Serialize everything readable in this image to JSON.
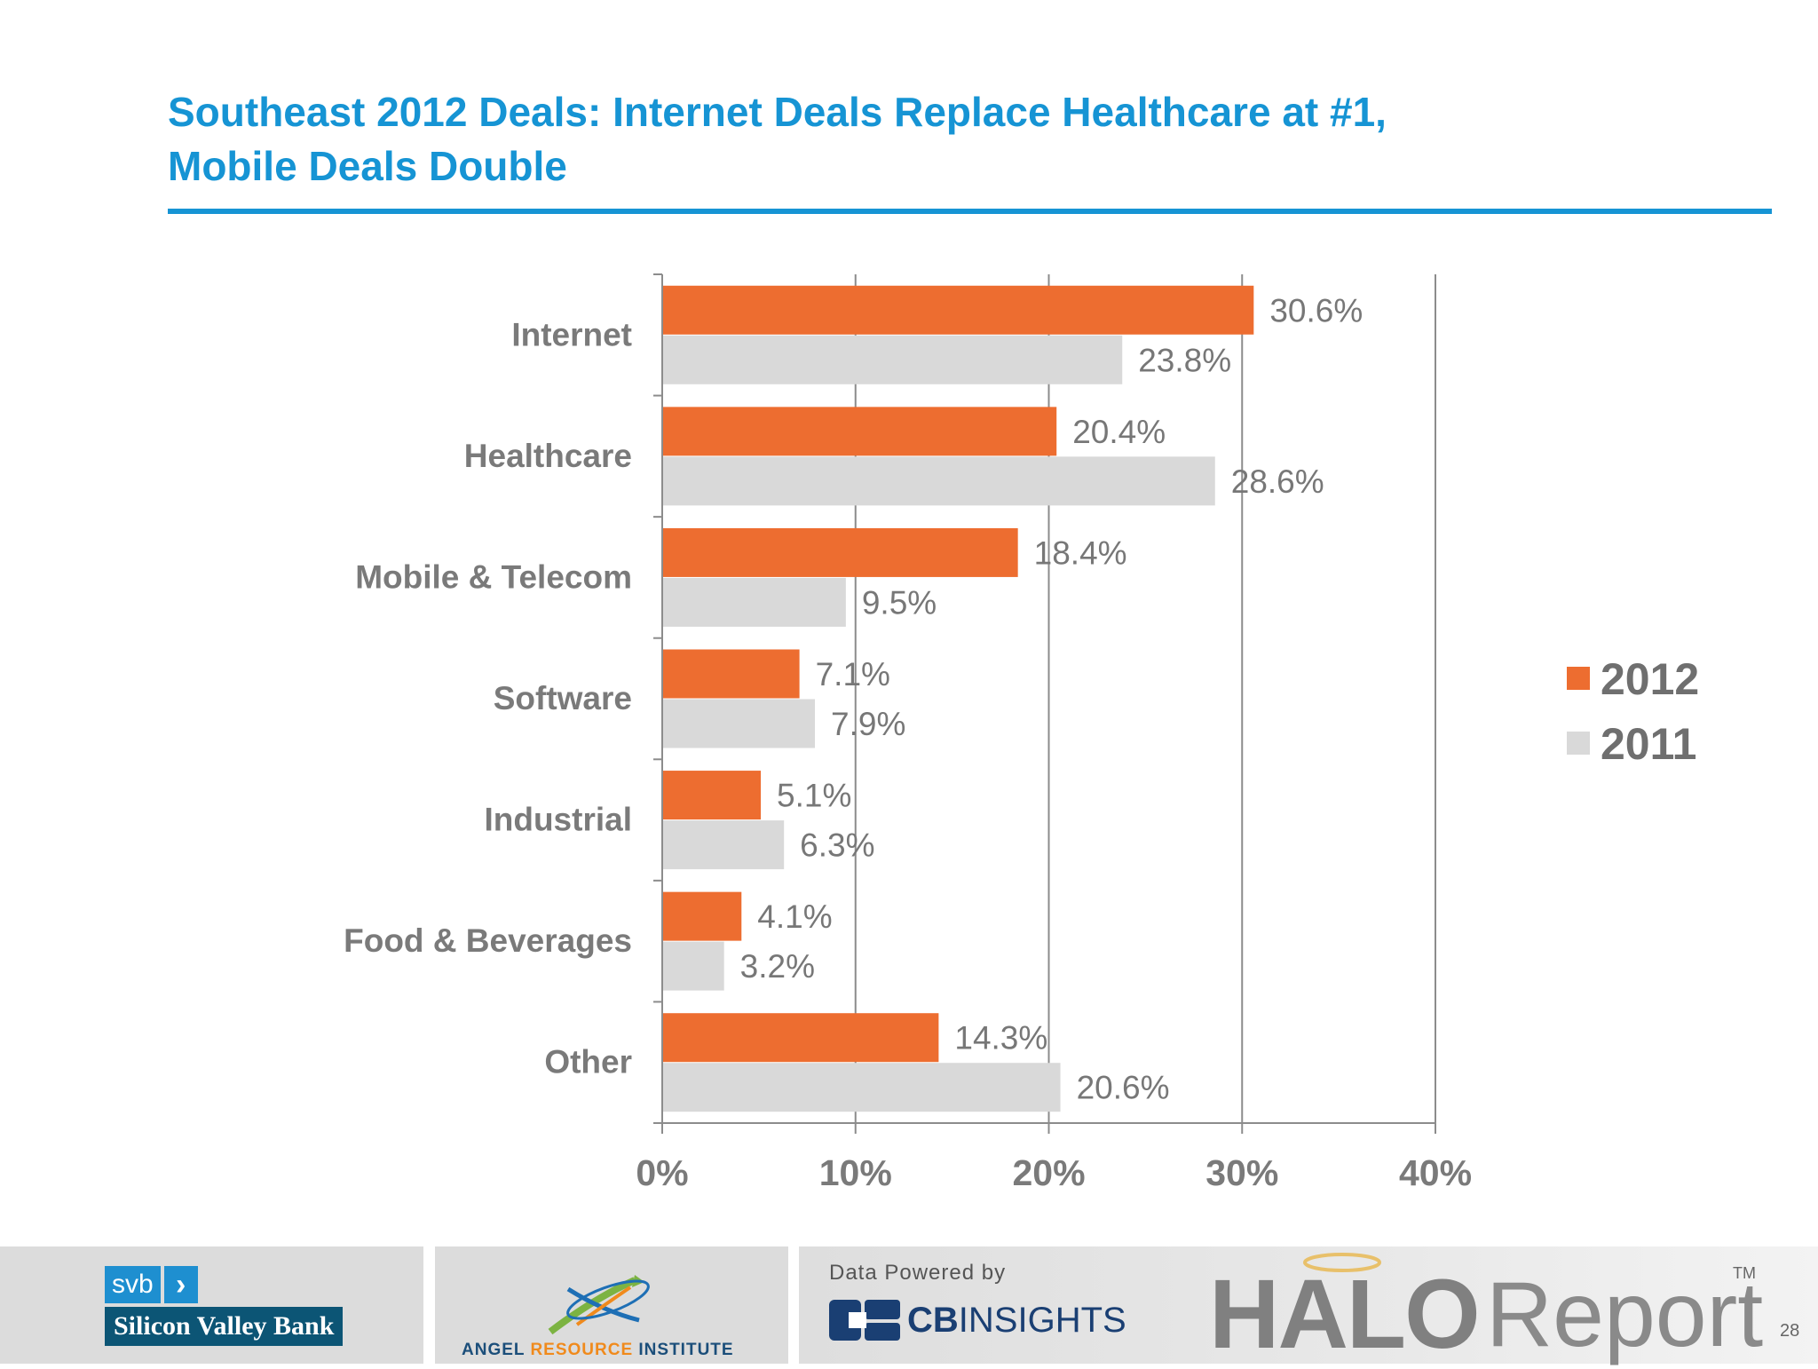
{
  "slide": {
    "title_line1": "Southeast 2012 Deals: Internet Deals Replace Healthcare at #1,",
    "title_line2": "Mobile Deals Double",
    "page_number": "28"
  },
  "chart_data": {
    "type": "bar",
    "orientation": "horizontal",
    "categories": [
      "Internet",
      "Healthcare",
      "Mobile & Telecom",
      "Software",
      "Industrial",
      "Food & Beverages",
      "Other"
    ],
    "series": [
      {
        "name": "2012",
        "values": [
          30.6,
          20.4,
          18.4,
          7.1,
          5.1,
          4.1,
          14.3
        ],
        "labels": [
          "30.6%",
          "20.4%",
          "18.4%",
          "7.1%",
          "5.1%",
          "4.1%",
          "14.3%"
        ],
        "color": "#ed6d30"
      },
      {
        "name": "2011",
        "values": [
          23.8,
          28.6,
          9.5,
          7.9,
          6.3,
          3.2,
          20.6
        ],
        "labels": [
          "23.8%",
          "28.6%",
          "9.5%",
          "7.9%",
          "6.3%",
          "3.2%",
          "20.6%"
        ],
        "color": "#d9d9d9"
      }
    ],
    "xlim": [
      0,
      40
    ],
    "xticks": [
      0,
      10,
      20,
      30,
      40
    ],
    "xtick_labels": [
      "0%",
      "10%",
      "20%",
      "30%",
      "40%"
    ],
    "grid": "vertical",
    "legend_position": "right"
  },
  "footer": {
    "svb": {
      "short": "svb",
      "chevron": "›",
      "name": "Silicon Valley Bank"
    },
    "ari": {
      "part1": "ANGEL ",
      "part2": "RESOURCE",
      "part3": " INSTITUTE"
    },
    "cbinsights": {
      "powered": "Data Powered by",
      "brand_bold": "CB",
      "brand_rest": "INSIGHTS"
    },
    "halo": {
      "halo": "HALO",
      "report": "Report",
      "tm": "TM"
    }
  },
  "colors": {
    "title": "#1694d4",
    "bar_2012": "#ed6d30",
    "bar_2011": "#d9d9d9",
    "grid": "#8c8c8c"
  },
  "icons": {
    "ari_logo": "crossed-arrows-icon",
    "cbi_logo": "cb-blocks-icon",
    "halo_ring": "halo-ring-icon"
  }
}
